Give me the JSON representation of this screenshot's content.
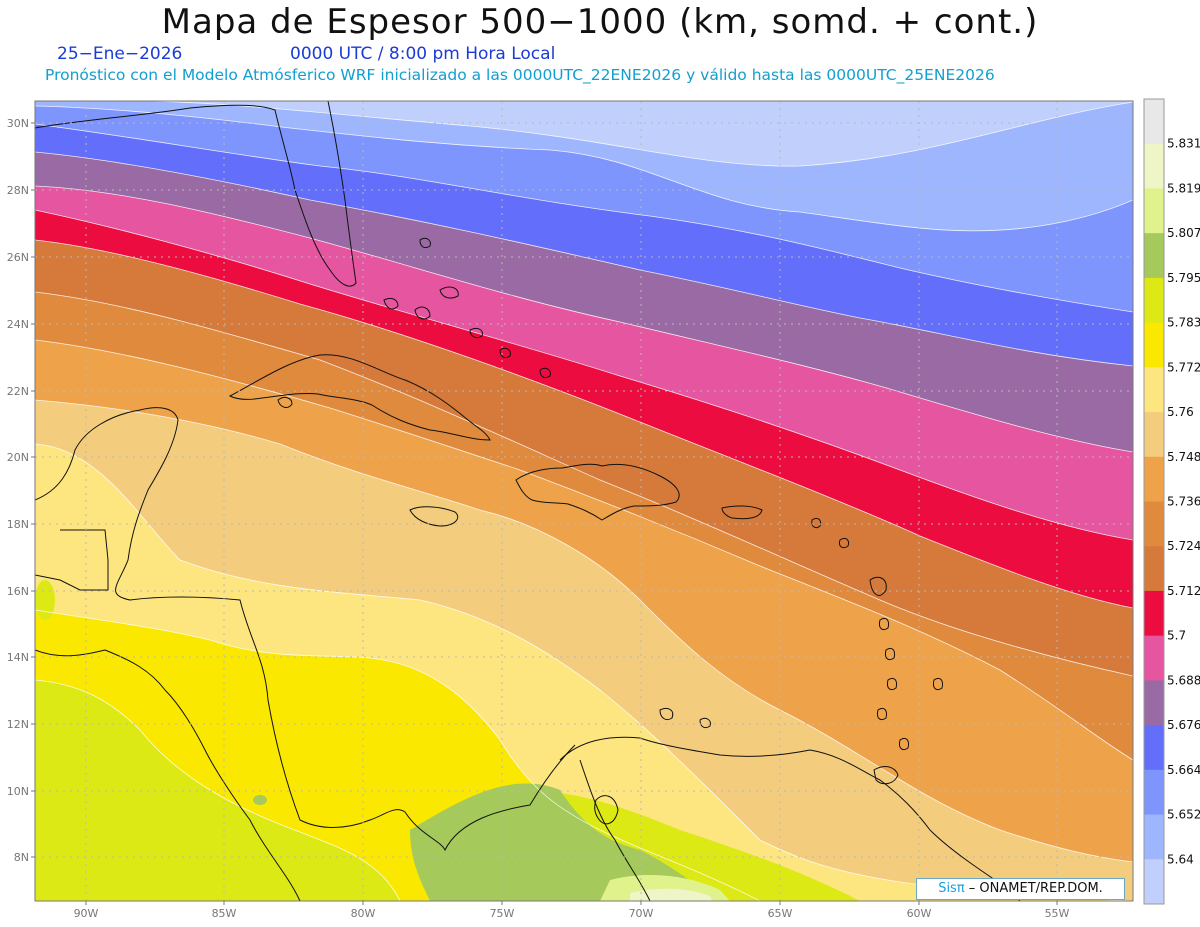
{
  "header": {
    "title": "Mapa de Espesor 500−1000 (km, somd. + cont.)",
    "date": "25−Ene−2026",
    "time": "0000 UTC / 8:00 pm Hora Local",
    "description": "Pronóstico con el Modelo Atmósferico WRF inicializado a las 0000UTC_22ENE2026 y válido hasta las  0000UTC_25ENE2026"
  },
  "map": {
    "lat_labels": [
      "30N",
      "28N",
      "26N",
      "24N",
      "22N",
      "20N",
      "18N",
      "16N",
      "14N",
      "12N",
      "10N",
      "8N"
    ],
    "lon_labels": [
      "90W",
      "85W",
      "80W",
      "75W",
      "70W",
      "65W",
      "60W",
      "55W"
    ],
    "gridlines": "dotted"
  },
  "colorbar": {
    "levels": [
      "5.831",
      "5.819",
      "5.807",
      "5.795",
      "5.783",
      "5.772",
      "5.76",
      "5.748",
      "5.736",
      "5.724",
      "5.712",
      "5.7",
      "5.688",
      "5.676",
      "5.664",
      "5.652",
      "5.64"
    ],
    "colors": [
      "#e8e8e8",
      "#f0f5c8",
      "#e0f28c",
      "#a5c95a",
      "#dde914",
      "#fae800",
      "#fde680",
      "#f3cd7d",
      "#eea34b",
      "#df8a3d",
      "#d67a3b",
      "#ec0c40",
      "#e6559f",
      "#9a6aa5",
      "#636ffa",
      "#7e95fe",
      "#9db6fe",
      "#c0cffc"
    ]
  },
  "credit": {
    "brand": "Sisπ",
    "org": " – ONAMET/REP.DOM."
  }
}
